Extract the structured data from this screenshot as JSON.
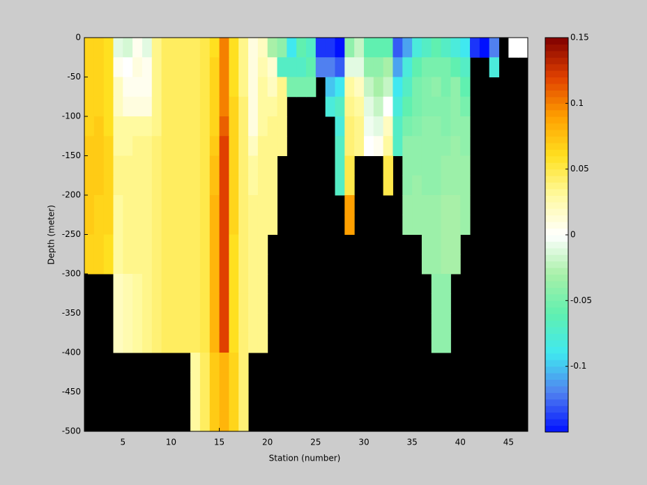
{
  "chart_data": {
    "type": "heatmap",
    "x_label": "Station (number)",
    "y_label": "Depth (meter)",
    "xlim": [
      1,
      47
    ],
    "ylim": [
      -500,
      0
    ],
    "xticks": [
      5,
      10,
      15,
      20,
      25,
      30,
      35,
      40,
      45
    ],
    "yticks": [
      0,
      -50,
      -100,
      -150,
      -200,
      -250,
      -300,
      -350,
      -400,
      -450,
      -500
    ],
    "x": [
      1,
      2,
      3,
      4,
      5,
      6,
      7,
      8,
      9,
      10,
      11,
      12,
      13,
      14,
      15,
      16,
      17,
      18,
      19,
      20,
      21,
      22,
      23,
      24,
      25,
      26,
      27,
      28,
      29,
      30,
      31,
      32,
      33,
      34,
      35,
      36,
      37,
      38,
      39,
      40,
      41,
      42,
      43,
      44,
      45,
      46
    ],
    "y": [
      0,
      -25,
      -50,
      -75,
      -100,
      -125,
      -150,
      -175,
      -200,
      -225,
      -250,
      -275,
      -300,
      -325,
      -350,
      -375,
      -400,
      -425,
      -450,
      -475
    ],
    "clim": [
      -0.15,
      0.15
    ],
    "cticks": [
      0.15,
      0.1,
      0.05,
      0,
      -0.05,
      -0.1
    ],
    "colormap": [
      "#0010ff",
      "#5080f0",
      "#40e8f0",
      "#60f0b0",
      "#a8f0a8",
      "#ffffff",
      "#fffaa0",
      "#ffe020",
      "#ffa000",
      "#e04000",
      "#800000"
    ],
    "missing_color": "#000000",
    "z": [
      [
        0.065,
        0.065,
        0.06,
        -0.01,
        -0.015,
        0.005,
        -0.01,
        0.035,
        0.045,
        0.045,
        0.045,
        0.045,
        0.05,
        0.06,
        0.1,
        0.06,
        0.035,
        0.01,
        0.02,
        -0.03,
        -0.04,
        -0.09,
        -0.06,
        -0.07,
        -0.14,
        -0.14,
        -0.15,
        -0.04,
        -0.02,
        -0.06,
        -0.06,
        -0.06,
        -0.13,
        -0.11,
        -0.08,
        -0.07,
        -0.06,
        -0.07,
        -0.08,
        -0.09,
        -0.14,
        -0.15,
        -0.12,
        null,
        0,
        0
      ],
      [
        0.065,
        0.065,
        0.06,
        0.005,
        0,
        0.01,
        0.005,
        0.035,
        0.045,
        0.045,
        0.045,
        0.045,
        0.05,
        0.065,
        0.1,
        0.06,
        0.035,
        0.01,
        0.025,
        0.015,
        -0.07,
        -0.07,
        -0.07,
        -0.06,
        -0.12,
        -0.12,
        -0.13,
        -0.01,
        -0.01,
        -0.04,
        -0.04,
        -0.03,
        -0.11,
        -0.08,
        -0.06,
        -0.05,
        -0.05,
        -0.05,
        -0.06,
        -0.07,
        null,
        null,
        -0.08,
        null,
        null,
        null
      ],
      [
        0.065,
        0.065,
        0.06,
        0.02,
        0.005,
        0.005,
        0.005,
        0.035,
        0.045,
        0.045,
        0.045,
        0.045,
        0.05,
        0.065,
        0.1,
        0.06,
        0.035,
        0.01,
        0.03,
        0.02,
        0.035,
        -0.05,
        -0.05,
        -0.05,
        null,
        -0.1,
        -0.09,
        0.03,
        0.02,
        -0.02,
        -0.03,
        -0.02,
        -0.09,
        -0.07,
        -0.05,
        -0.045,
        -0.04,
        -0.05,
        -0.04,
        -0.06,
        null,
        null,
        null,
        null,
        null,
        null
      ],
      [
        0.065,
        0.065,
        0.06,
        0.02,
        0.01,
        0.01,
        0.01,
        0.035,
        0.045,
        0.045,
        0.045,
        0.045,
        0.05,
        0.065,
        0.1,
        0.065,
        0.04,
        0.01,
        0.03,
        0.03,
        0.035,
        null,
        null,
        null,
        null,
        -0.08,
        -0.07,
        0.035,
        0.03,
        -0.01,
        -0.02,
        0,
        -0.08,
        -0.06,
        -0.05,
        -0.045,
        -0.045,
        -0.045,
        -0.04,
        -0.05,
        null,
        null,
        null,
        null,
        null,
        null
      ],
      [
        0.065,
        0.07,
        0.06,
        0.03,
        0.03,
        0.03,
        0.03,
        0.035,
        0.045,
        0.045,
        0.045,
        0.045,
        0.05,
        0.065,
        0.11,
        0.065,
        0.04,
        0.01,
        0.03,
        0.035,
        0.035,
        null,
        null,
        null,
        null,
        null,
        -0.08,
        0.04,
        0.035,
        -0.005,
        -0.01,
        0.02,
        -0.07,
        -0.05,
        -0.045,
        -0.04,
        -0.04,
        -0.045,
        -0.04,
        -0.04,
        null,
        null,
        null,
        null,
        null,
        null
      ],
      [
        0.07,
        0.07,
        0.065,
        0.03,
        0.03,
        0.035,
        0.035,
        0.04,
        0.045,
        0.045,
        0.045,
        0.045,
        0.05,
        0.07,
        0.12,
        0.065,
        0.04,
        0.02,
        0.035,
        0.035,
        0.035,
        null,
        null,
        null,
        null,
        null,
        -0.07,
        0.04,
        0.035,
        0,
        0.005,
        0.03,
        -0.07,
        -0.04,
        -0.04,
        -0.04,
        -0.04,
        -0.04,
        -0.035,
        -0.04,
        null,
        null,
        null,
        null,
        null,
        null
      ],
      [
        0.07,
        0.07,
        0.065,
        0.035,
        0.035,
        0.035,
        0.035,
        0.04,
        0.045,
        0.045,
        0.045,
        0.045,
        0.05,
        0.075,
        0.12,
        0.065,
        0.04,
        0.03,
        0.035,
        0.035,
        null,
        null,
        null,
        null,
        null,
        null,
        -0.07,
        0.05,
        null,
        null,
        null,
        0.05,
        null,
        -0.04,
        -0.04,
        -0.04,
        -0.04,
        -0.035,
        -0.035,
        -0.035,
        null,
        null,
        null,
        null,
        null,
        null
      ],
      [
        0.07,
        0.07,
        0.065,
        0.035,
        0.035,
        0.035,
        0.035,
        0.04,
        0.045,
        0.045,
        0.045,
        0.045,
        0.05,
        0.075,
        0.12,
        0.065,
        0.04,
        0.03,
        0.035,
        0.035,
        null,
        null,
        null,
        null,
        null,
        null,
        -0.07,
        0.05,
        null,
        null,
        null,
        0.05,
        null,
        -0.04,
        -0.035,
        -0.04,
        -0.04,
        -0.035,
        -0.035,
        -0.035,
        null,
        null,
        null,
        null,
        null,
        null
      ],
      [
        0.07,
        0.065,
        0.065,
        0.03,
        0.035,
        0.035,
        0.035,
        0.04,
        0.045,
        0.045,
        0.045,
        0.045,
        0.05,
        0.08,
        0.12,
        0.065,
        0.04,
        0.035,
        0.035,
        0.035,
        null,
        null,
        null,
        null,
        null,
        null,
        null,
        0.09,
        null,
        null,
        null,
        null,
        null,
        -0.035,
        -0.035,
        -0.035,
        -0.035,
        -0.03,
        -0.03,
        -0.035,
        null,
        null,
        null,
        null,
        null,
        null
      ],
      [
        0.07,
        0.065,
        0.065,
        0.03,
        0.035,
        0.035,
        0.035,
        0.04,
        0.045,
        0.045,
        0.045,
        0.045,
        0.05,
        0.08,
        0.12,
        0.065,
        0.04,
        0.035,
        0.035,
        0.035,
        null,
        null,
        null,
        null,
        null,
        null,
        null,
        0.09,
        null,
        null,
        null,
        null,
        null,
        -0.035,
        -0.035,
        -0.035,
        -0.035,
        -0.03,
        -0.03,
        -0.035,
        null,
        null,
        null,
        null,
        null,
        null
      ],
      [
        0.065,
        0.065,
        0.06,
        0.03,
        0.035,
        0.035,
        0.035,
        0.04,
        0.045,
        0.045,
        0.045,
        0.045,
        0.05,
        0.08,
        0.12,
        0.06,
        0.04,
        0.035,
        0.035,
        null,
        null,
        null,
        null,
        null,
        null,
        null,
        null,
        null,
        null,
        null,
        null,
        null,
        null,
        null,
        null,
        -0.035,
        -0.035,
        -0.03,
        -0.03,
        null,
        null,
        null,
        null,
        null,
        null,
        null
      ],
      [
        0.065,
        0.065,
        0.06,
        0.03,
        0.035,
        0.035,
        0.035,
        0.04,
        0.045,
        0.045,
        0.045,
        0.045,
        0.05,
        0.08,
        0.12,
        0.06,
        0.04,
        0.035,
        0.035,
        null,
        null,
        null,
        null,
        null,
        null,
        null,
        null,
        null,
        null,
        null,
        null,
        null,
        null,
        null,
        null,
        -0.035,
        -0.035,
        -0.03,
        -0.03,
        null,
        null,
        null,
        null,
        null,
        null,
        null
      ],
      [
        null,
        null,
        null,
        0.02,
        0.025,
        0.03,
        0.035,
        0.04,
        0.045,
        0.045,
        0.045,
        0.045,
        0.05,
        0.08,
        0.12,
        0.06,
        0.04,
        0.035,
        0.035,
        null,
        null,
        null,
        null,
        null,
        null,
        null,
        null,
        null,
        null,
        null,
        null,
        null,
        null,
        null,
        null,
        null,
        -0.04,
        -0.04,
        null,
        null,
        null,
        null,
        null,
        null,
        null,
        null
      ],
      [
        null,
        null,
        null,
        0.02,
        0.025,
        0.03,
        0.035,
        0.04,
        0.045,
        0.045,
        0.045,
        0.045,
        0.05,
        0.08,
        0.12,
        0.06,
        0.04,
        0.035,
        0.035,
        null,
        null,
        null,
        null,
        null,
        null,
        null,
        null,
        null,
        null,
        null,
        null,
        null,
        null,
        null,
        null,
        null,
        -0.04,
        -0.04,
        null,
        null,
        null,
        null,
        null,
        null,
        null,
        null
      ],
      [
        null,
        null,
        null,
        0.02,
        0.025,
        0.03,
        0.035,
        0.04,
        0.045,
        0.045,
        0.045,
        0.045,
        0.05,
        0.08,
        0.12,
        0.06,
        0.04,
        0.035,
        0.035,
        null,
        null,
        null,
        null,
        null,
        null,
        null,
        null,
        null,
        null,
        null,
        null,
        null,
        null,
        null,
        null,
        null,
        -0.04,
        -0.04,
        null,
        null,
        null,
        null,
        null,
        null,
        null,
        null
      ],
      [
        null,
        null,
        null,
        0.02,
        0.025,
        0.03,
        0.035,
        0.04,
        0.045,
        0.045,
        0.045,
        0.045,
        0.05,
        0.08,
        0.12,
        0.06,
        0.04,
        0.035,
        0.035,
        null,
        null,
        null,
        null,
        null,
        null,
        null,
        null,
        null,
        null,
        null,
        null,
        null,
        null,
        null,
        null,
        null,
        -0.04,
        -0.04,
        null,
        null,
        null,
        null,
        null,
        null,
        null,
        null
      ],
      [
        null,
        null,
        null,
        null,
        null,
        null,
        null,
        null,
        null,
        null,
        null,
        0.03,
        0.045,
        0.07,
        0.08,
        0.065,
        0.04,
        null,
        null,
        null,
        null,
        null,
        null,
        null,
        null,
        null,
        null,
        null,
        null,
        null,
        null,
        null,
        null,
        null,
        null,
        null,
        null,
        null,
        null,
        null,
        null,
        null,
        null,
        null,
        null,
        null
      ],
      [
        null,
        null,
        null,
        null,
        null,
        null,
        null,
        null,
        null,
        null,
        null,
        0.03,
        0.045,
        0.07,
        0.08,
        0.065,
        0.04,
        null,
        null,
        null,
        null,
        null,
        null,
        null,
        null,
        null,
        null,
        null,
        null,
        null,
        null,
        null,
        null,
        null,
        null,
        null,
        null,
        null,
        null,
        null,
        null,
        null,
        null,
        null,
        null,
        null
      ],
      [
        null,
        null,
        null,
        null,
        null,
        null,
        null,
        null,
        null,
        null,
        null,
        0.03,
        0.045,
        0.07,
        0.08,
        0.065,
        0.04,
        null,
        null,
        null,
        null,
        null,
        null,
        null,
        null,
        null,
        null,
        null,
        null,
        null,
        null,
        null,
        null,
        null,
        null,
        null,
        null,
        null,
        null,
        null,
        null,
        null,
        null,
        null,
        null,
        null
      ],
      [
        null,
        null,
        null,
        null,
        null,
        null,
        null,
        null,
        null,
        null,
        null,
        0.03,
        0.045,
        0.07,
        0.08,
        0.065,
        0.04,
        null,
        null,
        null,
        null,
        null,
        null,
        null,
        null,
        null,
        null,
        null,
        null,
        null,
        null,
        null,
        null,
        null,
        null,
        null,
        null,
        null,
        null,
        null,
        null,
        null,
        null,
        null,
        null,
        null
      ]
    ]
  }
}
